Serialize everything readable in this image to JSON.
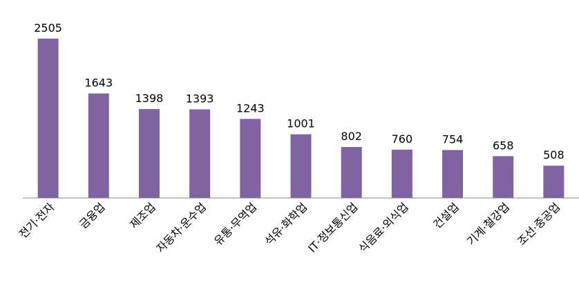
{
  "chart_data": {
    "type": "bar",
    "categories": [
      "전기·전자",
      "금융업",
      "제조업",
      "자동차·운수업",
      "유통·무역업",
      "석유·화학업",
      "IT·정보통신업",
      "식음료·외식업",
      "건설업",
      "기계·철강업",
      "조선·중공업"
    ],
    "values": [
      2505,
      1643,
      1398,
      1393,
      1243,
      1001,
      802,
      760,
      754,
      658,
      508
    ],
    "color": "#8064a2",
    "ylim": [
      0,
      2700
    ]
  }
}
